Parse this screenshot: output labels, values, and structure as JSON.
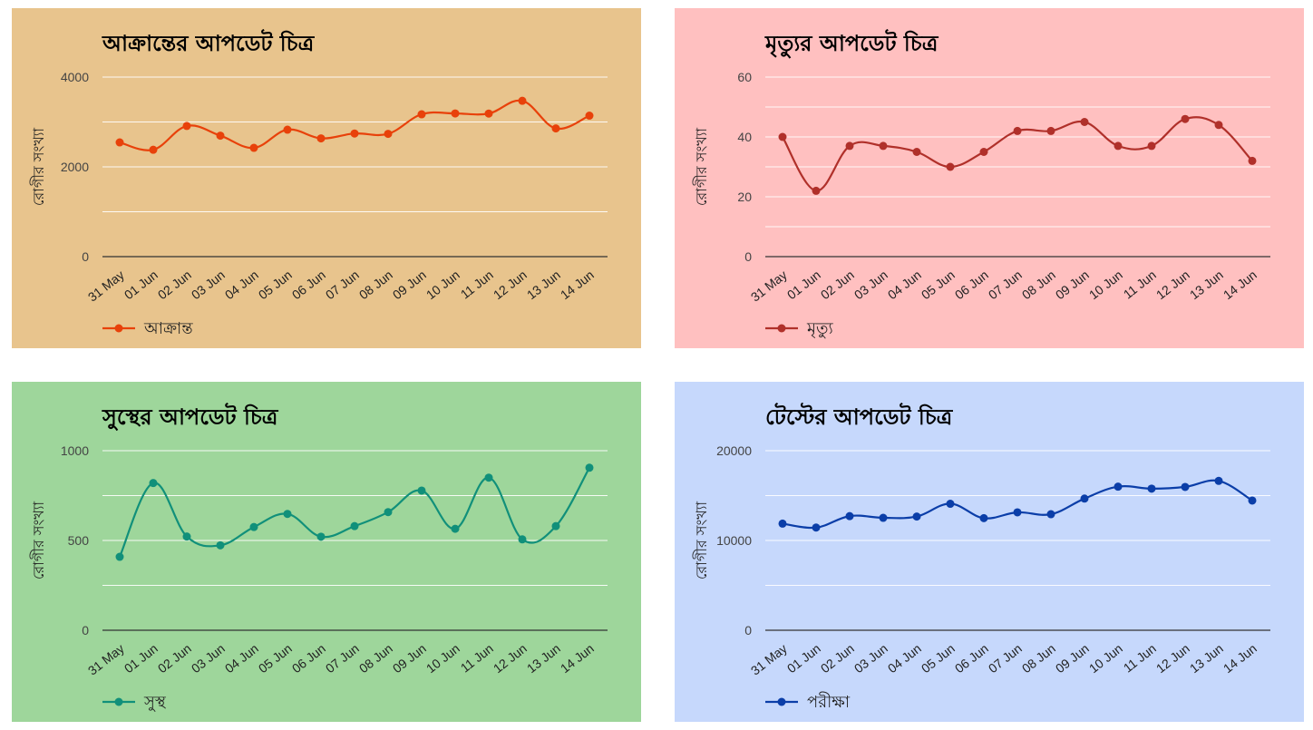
{
  "chart_data": [
    {
      "type": "line",
      "title": "আক্রান্তের আপডেট চিত্র",
      "ylabel": "রোগীর সংখ্যা",
      "xlabel": "",
      "background": "#e8c48d",
      "color": "#e8410a",
      "categories": [
        "31 May",
        "01 Jun",
        "02 Jun",
        "03 Jun",
        "04 Jun",
        "05 Jun",
        "06 Jun",
        "07 Jun",
        "08 Jun",
        "09 Jun",
        "10 Jun",
        "11 Jun",
        "12 Jun",
        "13 Jun",
        "14 Jun"
      ],
      "ylim": [
        0,
        4000
      ],
      "yticks": [
        0,
        2000,
        4000
      ],
      "ytick_labels": [
        "0",
        "2000",
        "4000"
      ],
      "grid": true,
      "legend_position": "bottom-left",
      "series": [
        {
          "name": "আক্রান্ত",
          "values": [
            2545,
            2381,
            2911,
            2695,
            2423,
            2828,
            2635,
            2743,
            2735,
            3171,
            3190,
            3187,
            3471,
            2856,
            3141
          ]
        }
      ]
    },
    {
      "type": "line",
      "title": "মৃত্যুর আপডেট চিত্র",
      "ylabel": "রোগীর সংখ্যা",
      "xlabel": "",
      "background": "#ffc0c0",
      "color": "#b0302a",
      "categories": [
        "31 May",
        "01 Jun",
        "02 Jun",
        "03 Jun",
        "04 Jun",
        "05 Jun",
        "06 Jun",
        "07 Jun",
        "08 Jun",
        "09 Jun",
        "10 Jun",
        "11 Jun",
        "12 Jun",
        "13 Jun",
        "14 Jun"
      ],
      "ylim": [
        0,
        60
      ],
      "yticks": [
        0,
        20,
        40,
        60
      ],
      "ytick_labels": [
        "0",
        "20",
        "40",
        "60"
      ],
      "grid": true,
      "legend_position": "bottom-left",
      "series": [
        {
          "name": "মৃত্যু",
          "values": [
            40,
            22,
            37,
            37,
            35,
            30,
            35,
            42,
            42,
            45,
            37,
            37,
            46,
            44,
            32
          ]
        }
      ]
    },
    {
      "type": "line",
      "title": "সুস্থের আপডেট চিত্র",
      "ylabel": "রোগীর সংখ্যা",
      "xlabel": "",
      "background": "#9ed69b",
      "color": "#11907a",
      "categories": [
        "31 May",
        "01 Jun",
        "02 Jun",
        "03 Jun",
        "04 Jun",
        "05 Jun",
        "06 Jun",
        "07 Jun",
        "08 Jun",
        "09 Jun",
        "10 Jun",
        "11 Jun",
        "12 Jun",
        "13 Jun",
        "14 Jun"
      ],
      "ylim": [
        0,
        1000
      ],
      "yticks": [
        0,
        500,
        1000
      ],
      "ytick_labels": [
        "0",
        "500",
        "1000"
      ],
      "grid": true,
      "legend_position": "bottom-left",
      "series": [
        {
          "name": "সুস্থ",
          "values": [
            409,
            820,
            522,
            473,
            575,
            648,
            521,
            580,
            658,
            778,
            565,
            850,
            506,
            580,
            905
          ]
        }
      ]
    },
    {
      "type": "line",
      "title": "টেস্টের আপডেট চিত্র",
      "ylabel": "রোগীর সংখ্যা",
      "xlabel": "",
      "background": "#c6d8fc",
      "color": "#0b3ea8",
      "categories": [
        "31 May",
        "01 Jun",
        "02 Jun",
        "03 Jun",
        "04 Jun",
        "05 Jun",
        "06 Jun",
        "07 Jun",
        "08 Jun",
        "09 Jun",
        "10 Jun",
        "11 Jun",
        "12 Jun",
        "13 Jun",
        "14 Jun"
      ],
      "ylim": [
        0,
        20000
      ],
      "yticks": [
        0,
        10000,
        20000
      ],
      "ytick_labels": [
        "0",
        "10000",
        "20000"
      ],
      "grid": true,
      "legend_position": "bottom-left",
      "series": [
        {
          "name": "পরীক্ষা",
          "values": [
            11876,
            11439,
            12714,
            12524,
            12664,
            14088,
            12487,
            13136,
            12925,
            14667,
            15993,
            15772,
            15965,
            16637,
            14446
          ]
        }
      ]
    }
  ]
}
